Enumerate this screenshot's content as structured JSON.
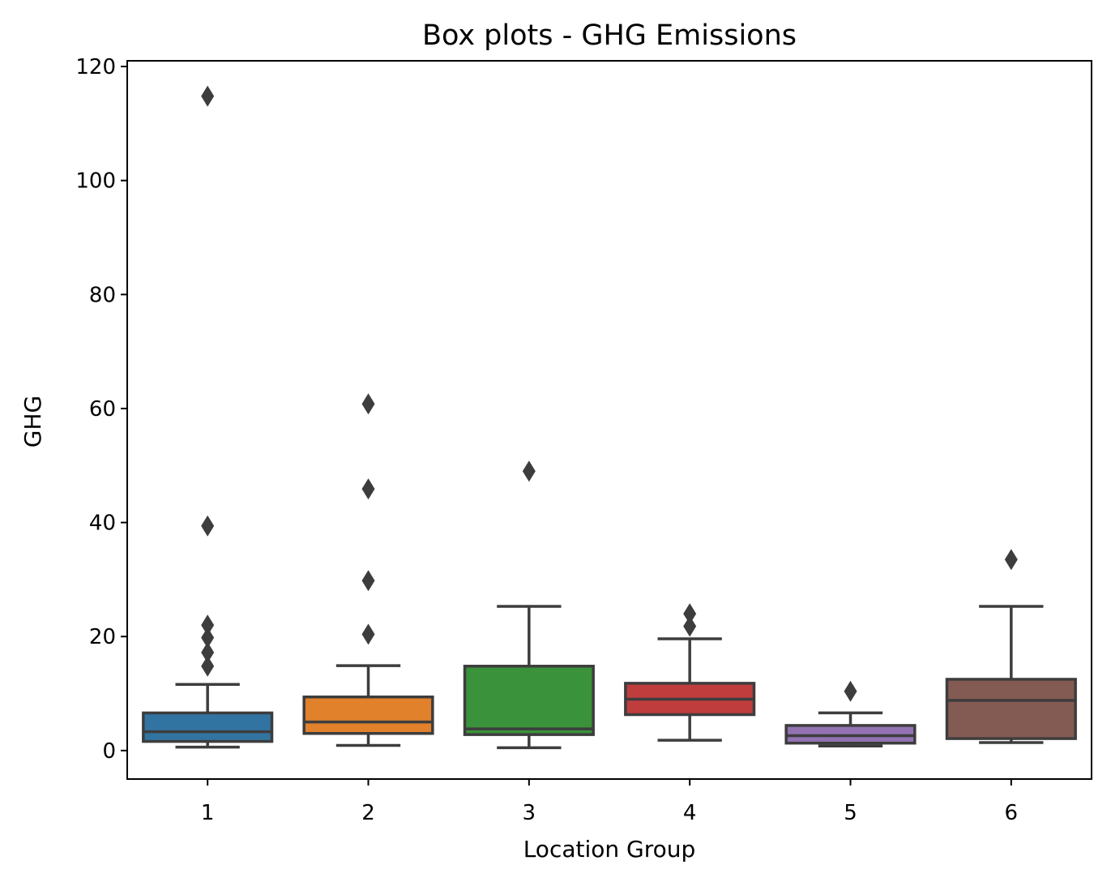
{
  "chart_data": {
    "type": "box",
    "title": "Box plots - GHG Emissions",
    "xlabel": "Location Group",
    "ylabel": "GHG",
    "ylim": [
      -5,
      121
    ],
    "yticks": [
      0,
      20,
      40,
      60,
      80,
      100,
      120
    ],
    "grid": false,
    "legend": "none",
    "categories": [
      "1",
      "2",
      "3",
      "4",
      "5",
      "6"
    ],
    "boxes": [
      {
        "category": "1",
        "color": "#3274a1",
        "whisker_low": 0.6,
        "q1": 1.6,
        "median": 3.3,
        "q3": 6.6,
        "whisker_high": 11.6,
        "outliers": [
          14.8,
          17.2,
          19.8,
          22.0,
          39.4,
          114.8
        ]
      },
      {
        "category": "2",
        "color": "#e1812c",
        "whisker_low": 0.9,
        "q1": 3.0,
        "median": 5.0,
        "q3": 9.4,
        "whisker_high": 14.9,
        "outliers": [
          20.4,
          29.8,
          45.9,
          60.8
        ]
      },
      {
        "category": "3",
        "color": "#3a923a",
        "whisker_low": 0.5,
        "q1": 2.8,
        "median": 3.8,
        "q3": 14.8,
        "whisker_high": 25.3,
        "outliers": [
          49.0
        ]
      },
      {
        "category": "4",
        "color": "#c03d3e",
        "whisker_low": 1.8,
        "q1": 6.3,
        "median": 9.0,
        "q3": 11.8,
        "whisker_high": 19.6,
        "outliers": [
          21.8,
          24.0
        ]
      },
      {
        "category": "5",
        "color": "#9372b2",
        "whisker_low": 0.8,
        "q1": 1.3,
        "median": 2.6,
        "q3": 4.4,
        "whisker_high": 6.6,
        "outliers": [
          10.4
        ]
      },
      {
        "category": "6",
        "color": "#845b53",
        "whisker_low": 1.4,
        "q1": 2.1,
        "median": 8.8,
        "q3": 12.5,
        "whisker_high": 25.3,
        "outliers": [
          33.5
        ]
      }
    ]
  }
}
